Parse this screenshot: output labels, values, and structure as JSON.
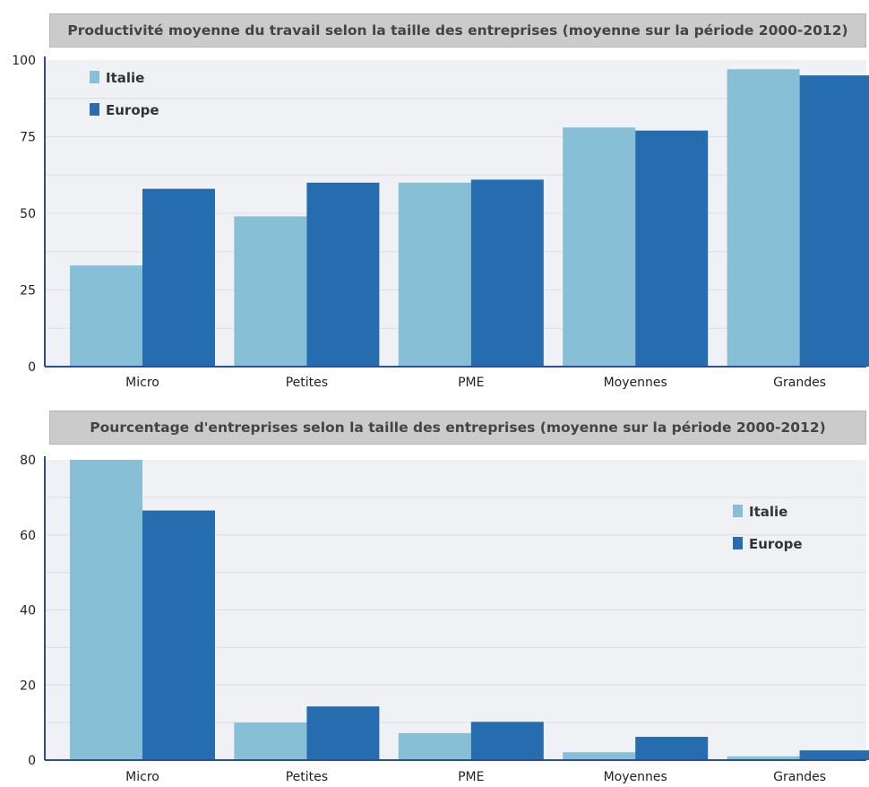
{
  "colors": {
    "italie": "#86bfd6",
    "europe": "#266db0",
    "plot_bg": "#eff1f4",
    "axis": "#2d4f9a",
    "grid": "#dcdfe5"
  },
  "chart_data": [
    {
      "type": "bar",
      "title": "Productivité moyenne du travail selon la taille des entreprises (moyenne sur la période 2000-2012)",
      "categories": [
        "Micro",
        "Petites",
        "PME",
        "Moyennes",
        "Grandes"
      ],
      "series": [
        {
          "name": "Italie",
          "values": [
            33,
            49,
            60,
            78,
            97
          ]
        },
        {
          "name": "Europe",
          "values": [
            58,
            60,
            61,
            77,
            95
          ]
        }
      ],
      "ylim": [
        0,
        100
      ],
      "yticks": [
        0,
        25,
        50,
        75,
        100
      ],
      "legend_position": "top-left",
      "grid": true
    },
    {
      "type": "bar",
      "title": "Pourcentage d'entreprises selon la taille des entreprises (moyenne sur la période 2000-2012)",
      "categories": [
        "Micro",
        "Petites",
        "PME",
        "Moyennes",
        "Grandes"
      ],
      "series": [
        {
          "name": "Italie",
          "values": [
            80.0,
            10.0,
            7.2,
            2.1,
            1.0
          ]
        },
        {
          "name": "Europe",
          "values": [
            66.5,
            14.3,
            10.2,
            6.2,
            2.6
          ]
        }
      ],
      "ylim": [
        0,
        80
      ],
      "yticks": [
        0,
        20,
        40,
        60,
        80
      ],
      "legend_position": "top-right",
      "grid": true
    }
  ]
}
